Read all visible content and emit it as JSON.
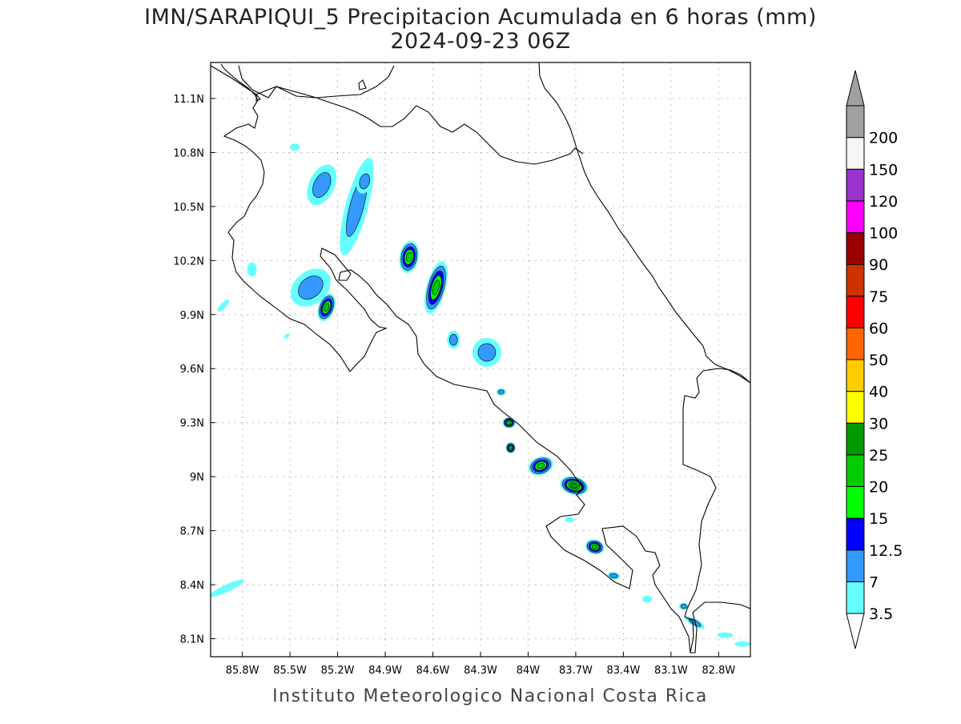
{
  "title_line1": "IMN/SARAPIQUI_5 Precipitacion Acumulada en 6 horas (mm)",
  "title_line2": "2024-09-23 06Z",
  "footer": "Instituto Meteorologico Nacional Costa Rica",
  "map": {
    "lon_range": [
      -86.0,
      -82.6
    ],
    "lat_range": [
      8.0,
      11.3
    ],
    "grid": true,
    "lon_ticks": [
      {
        "value": -85.8,
        "label": "85.8W"
      },
      {
        "value": -85.5,
        "label": "85.5W"
      },
      {
        "value": -85.2,
        "label": "85.2W"
      },
      {
        "value": -84.9,
        "label": "84.9W"
      },
      {
        "value": -84.6,
        "label": "84.6W"
      },
      {
        "value": -84.3,
        "label": "84.3W"
      },
      {
        "value": -84.0,
        "label": "84W"
      },
      {
        "value": -83.7,
        "label": "83.7W"
      },
      {
        "value": -83.4,
        "label": "83.4W"
      },
      {
        "value": -83.1,
        "label": "83.1W"
      },
      {
        "value": -82.8,
        "label": "82.8W"
      }
    ],
    "lat_ticks": [
      {
        "value": 11.1,
        "label": "11.1N"
      },
      {
        "value": 10.8,
        "label": "10.8N"
      },
      {
        "value": 10.5,
        "label": "10.5N"
      },
      {
        "value": 10.2,
        "label": "10.2N"
      },
      {
        "value": 9.9,
        "label": "9.9N"
      },
      {
        "value": 9.6,
        "label": "9.6N"
      },
      {
        "value": 9.3,
        "label": "9.3N"
      },
      {
        "value": 9.0,
        "label": "9N"
      },
      {
        "value": 8.7,
        "label": "8.7N"
      },
      {
        "value": 8.4,
        "label": "8.4N"
      },
      {
        "value": 8.1,
        "label": "8.1N"
      }
    ],
    "precip_cells": [
      {
        "lon": -85.47,
        "lat": 10.83,
        "rx": 0.03,
        "ry": 0.02,
        "rot": 0,
        "max_mm": 3.5
      },
      {
        "lon": -85.3,
        "lat": 10.62,
        "rx": 0.08,
        "ry": 0.12,
        "rot": 25,
        "max_mm": 7
      },
      {
        "lon": -85.08,
        "lat": 10.5,
        "rx": 0.07,
        "ry": 0.28,
        "rot": 15,
        "max_mm": 7
      },
      {
        "lon": -85.03,
        "lat": 10.64,
        "rx": 0.05,
        "ry": 0.07,
        "rot": 15,
        "max_mm": 7
      },
      {
        "lon": -85.37,
        "lat": 10.05,
        "rx": 0.14,
        "ry": 0.09,
        "rot": -40,
        "max_mm": 7
      },
      {
        "lon": -85.27,
        "lat": 9.94,
        "rx": 0.05,
        "ry": 0.08,
        "rot": 20,
        "max_mm": 20
      },
      {
        "lon": -85.74,
        "lat": 10.15,
        "rx": 0.03,
        "ry": 0.04,
        "rot": 0,
        "max_mm": 3.5
      },
      {
        "lon": -85.92,
        "lat": 9.95,
        "rx": 0.05,
        "ry": 0.015,
        "rot": -45,
        "max_mm": 3.5
      },
      {
        "lon": -85.52,
        "lat": 9.78,
        "rx": 0.02,
        "ry": 0.01,
        "rot": -45,
        "max_mm": 3.5
      },
      {
        "lon": -84.75,
        "lat": 10.22,
        "rx": 0.06,
        "ry": 0.09,
        "rot": 10,
        "max_mm": 20
      },
      {
        "lon": -84.58,
        "lat": 10.05,
        "rx": 0.06,
        "ry": 0.15,
        "rot": 15,
        "max_mm": 20
      },
      {
        "lon": -84.47,
        "lat": 9.76,
        "rx": 0.04,
        "ry": 0.05,
        "rot": 0,
        "max_mm": 7
      },
      {
        "lon": -84.26,
        "lat": 9.69,
        "rx": 0.09,
        "ry": 0.08,
        "rot": -30,
        "max_mm": 7
      },
      {
        "lon": -84.17,
        "lat": 9.47,
        "rx": 0.03,
        "ry": 0.02,
        "rot": 0,
        "max_mm": 7
      },
      {
        "lon": -84.12,
        "lat": 9.3,
        "rx": 0.04,
        "ry": 0.03,
        "rot": 0,
        "max_mm": 20
      },
      {
        "lon": -84.11,
        "lat": 9.16,
        "rx": 0.03,
        "ry": 0.03,
        "rot": 0,
        "max_mm": 20
      },
      {
        "lon": -83.92,
        "lat": 9.06,
        "rx": 0.08,
        "ry": 0.05,
        "rot": -20,
        "max_mm": 20
      },
      {
        "lon": -83.71,
        "lat": 8.95,
        "rx": 0.09,
        "ry": 0.05,
        "rot": 15,
        "max_mm": 25
      },
      {
        "lon": -83.74,
        "lat": 8.76,
        "rx": 0.03,
        "ry": 0.015,
        "rot": 0,
        "max_mm": 3.5
      },
      {
        "lon": -83.58,
        "lat": 8.61,
        "rx": 0.06,
        "ry": 0.04,
        "rot": 15,
        "max_mm": 20
      },
      {
        "lon": -83.46,
        "lat": 8.45,
        "rx": 0.04,
        "ry": 0.02,
        "rot": 10,
        "max_mm": 7
      },
      {
        "lon": -83.25,
        "lat": 8.32,
        "rx": 0.03,
        "ry": 0.02,
        "rot": 0,
        "max_mm": 3.5
      },
      {
        "lon": -83.02,
        "lat": 8.28,
        "rx": 0.03,
        "ry": 0.02,
        "rot": 0,
        "max_mm": 7
      },
      {
        "lon": -82.95,
        "lat": 8.19,
        "rx": 0.07,
        "ry": 0.02,
        "rot": 30,
        "max_mm": 7
      },
      {
        "lon": -82.76,
        "lat": 8.12,
        "rx": 0.05,
        "ry": 0.015,
        "rot": 0,
        "max_mm": 3.5
      },
      {
        "lon": -82.65,
        "lat": 8.07,
        "rx": 0.05,
        "ry": 0.015,
        "rot": 0,
        "max_mm": 3.5
      },
      {
        "lon": -85.9,
        "lat": 8.38,
        "rx": 0.12,
        "ry": 0.02,
        "rot": -25,
        "max_mm": 3.5
      }
    ]
  },
  "colorbar": {
    "levels": [
      {
        "label": "3.5",
        "color": "#66ffff"
      },
      {
        "label": "7",
        "color": "#3399ff"
      },
      {
        "label": "12.5",
        "color": "#0000ff"
      },
      {
        "label": "15",
        "color": "#00ff00"
      },
      {
        "label": "20",
        "color": "#00cc00"
      },
      {
        "label": "25",
        "color": "#009900"
      },
      {
        "label": "30",
        "color": "#ffff00"
      },
      {
        "label": "40",
        "color": "#ffcc00"
      },
      {
        "label": "50",
        "color": "#ff6600"
      },
      {
        "label": "60",
        "color": "#ff0000"
      },
      {
        "label": "75",
        "color": "#cc3300"
      },
      {
        "label": "90",
        "color": "#990000"
      },
      {
        "label": "100",
        "color": "#ff00ff"
      },
      {
        "label": "120",
        "color": "#9933cc"
      },
      {
        "label": "150",
        "color": "#f5f5f5"
      },
      {
        "label": "200",
        "color": "#a0a0a0"
      }
    ],
    "under_color": "#ffffff",
    "over_color": "#a0a0a0"
  }
}
